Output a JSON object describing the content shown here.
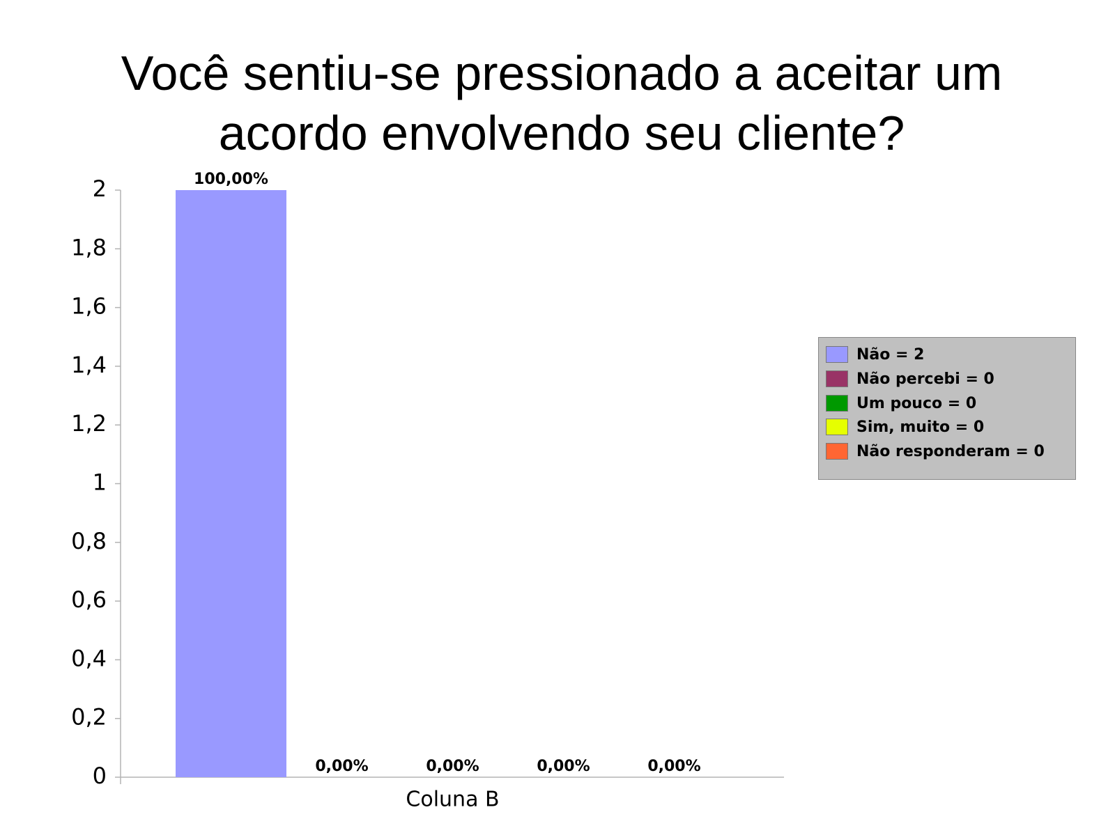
{
  "chart_data": {
    "type": "bar",
    "title": "Você sentiu-se pressionado a aceitar um acordo envolvendo seu cliente?",
    "categories": [
      "Coluna B"
    ],
    "series": [
      {
        "name": "Não = 2",
        "color": "#9999ff",
        "values": [
          2
        ],
        "value_labels": [
          "100,00%"
        ]
      },
      {
        "name": "Não percebi = 0",
        "color": "#993366",
        "values": [
          0
        ],
        "value_labels": [
          "0,00%"
        ]
      },
      {
        "name": "Um pouco = 0",
        "color": "#009900",
        "values": [
          0
        ],
        "value_labels": [
          "0,00%"
        ]
      },
      {
        "name": "Sim, muito = 0",
        "color": "#e6ff00",
        "values": [
          0
        ],
        "value_labels": [
          "0,00%"
        ]
      },
      {
        "name": "Não responderam = 0",
        "color": "#ff6633",
        "values": [
          0
        ],
        "value_labels": [
          "0,00%"
        ]
      }
    ],
    "ylim": [
      0,
      2
    ],
    "yticks": [
      0,
      {
        "value": 0.2,
        "label": "0,2"
      },
      {
        "value": 0.4,
        "label": "0,4"
      },
      {
        "value": 0.6,
        "label": "0,6"
      },
      {
        "value": 0.8,
        "label": "0,8"
      },
      1,
      {
        "value": 1.2,
        "label": "1,2"
      },
      {
        "value": 1.4,
        "label": "1,4"
      },
      {
        "value": 1.6,
        "label": "1,6"
      },
      {
        "value": 1.8,
        "label": "1,8"
      },
      2
    ],
    "grid": false,
    "legend": "right"
  }
}
